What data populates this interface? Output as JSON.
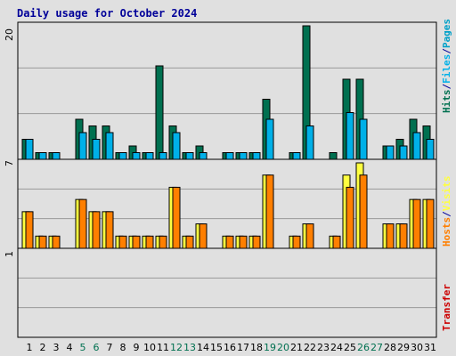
{
  "colors": {
    "background": "#e0e0e0",
    "title": "#000099",
    "grid": "#999999",
    "hits": "#007050",
    "files": "#00b0e8",
    "pages": "#00a0c8",
    "visits": "#ffff40",
    "hosts": "#ff7f00",
    "transfer": "#cc0000",
    "weekend_day": "#007050",
    "weekday": "#000000"
  },
  "chart_data": [
    {
      "type": "bar",
      "title": "Daily usage for October 2024",
      "ylabel_parts": [
        "Hits",
        "/",
        "Files",
        "/",
        "Pages"
      ],
      "ymax_label": "20",
      "ylim": [
        0,
        20
      ],
      "categories": [
        "1",
        "2",
        "3",
        "4",
        "5",
        "6",
        "7",
        "8",
        "9",
        "10",
        "11",
        "12",
        "13",
        "14",
        "15",
        "16",
        "17",
        "18",
        "19",
        "20",
        "21",
        "22",
        "23",
        "24",
        "25",
        "26",
        "27",
        "28",
        "29",
        "30",
        "31"
      ],
      "weekend_days": [
        "5",
        "6",
        "12",
        "13",
        "19",
        "20",
        "26",
        "27"
      ],
      "series": [
        {
          "name": "Hits",
          "values": [
            3,
            1,
            1,
            0,
            6,
            5,
            5,
            1,
            2,
            1,
            14,
            5,
            1,
            2,
            0,
            1,
            1,
            1,
            9,
            0,
            1,
            20,
            0,
            1,
            12,
            12,
            0,
            2,
            3,
            6,
            5
          ]
        },
        {
          "name": "Files",
          "values": [
            3,
            1,
            1,
            0,
            4,
            3,
            4,
            1,
            1,
            1,
            1,
            4,
            1,
            1,
            0,
            1,
            1,
            1,
            6,
            0,
            1,
            5,
            0,
            0,
            7,
            6,
            0,
            2,
            2,
            4,
            3
          ]
        }
      ]
    },
    {
      "type": "bar",
      "ylabel_parts": [
        "Hosts",
        "/",
        "Visits"
      ],
      "ymax_label": "7",
      "ylim": [
        0,
        7
      ],
      "series": [
        {
          "name": "Visits",
          "values": [
            3,
            1,
            1,
            0,
            4,
            3,
            3,
            1,
            1,
            1,
            1,
            5,
            1,
            2,
            0,
            1,
            1,
            1,
            6,
            0,
            1,
            2,
            0,
            1,
            6,
            7,
            0,
            2,
            2,
            4,
            4
          ]
        },
        {
          "name": "Hosts",
          "values": [
            3,
            1,
            1,
            0,
            4,
            3,
            3,
            1,
            1,
            1,
            1,
            5,
            1,
            2,
            0,
            1,
            1,
            1,
            6,
            0,
            1,
            2,
            0,
            1,
            5,
            6,
            0,
            2,
            2,
            4,
            4
          ]
        }
      ]
    },
    {
      "type": "bar",
      "ylabel": "Transfer",
      "ymax_label": "1",
      "ylim": [
        0,
        1
      ],
      "series": [
        {
          "name": "Transfer",
          "values": [
            0,
            0,
            0,
            0,
            0,
            0,
            0,
            0,
            0,
            0,
            0,
            0,
            0,
            0,
            0,
            0,
            0,
            0,
            0,
            0,
            0,
            0,
            0,
            0,
            0,
            0,
            0,
            0,
            0,
            0,
            0
          ]
        }
      ]
    }
  ]
}
